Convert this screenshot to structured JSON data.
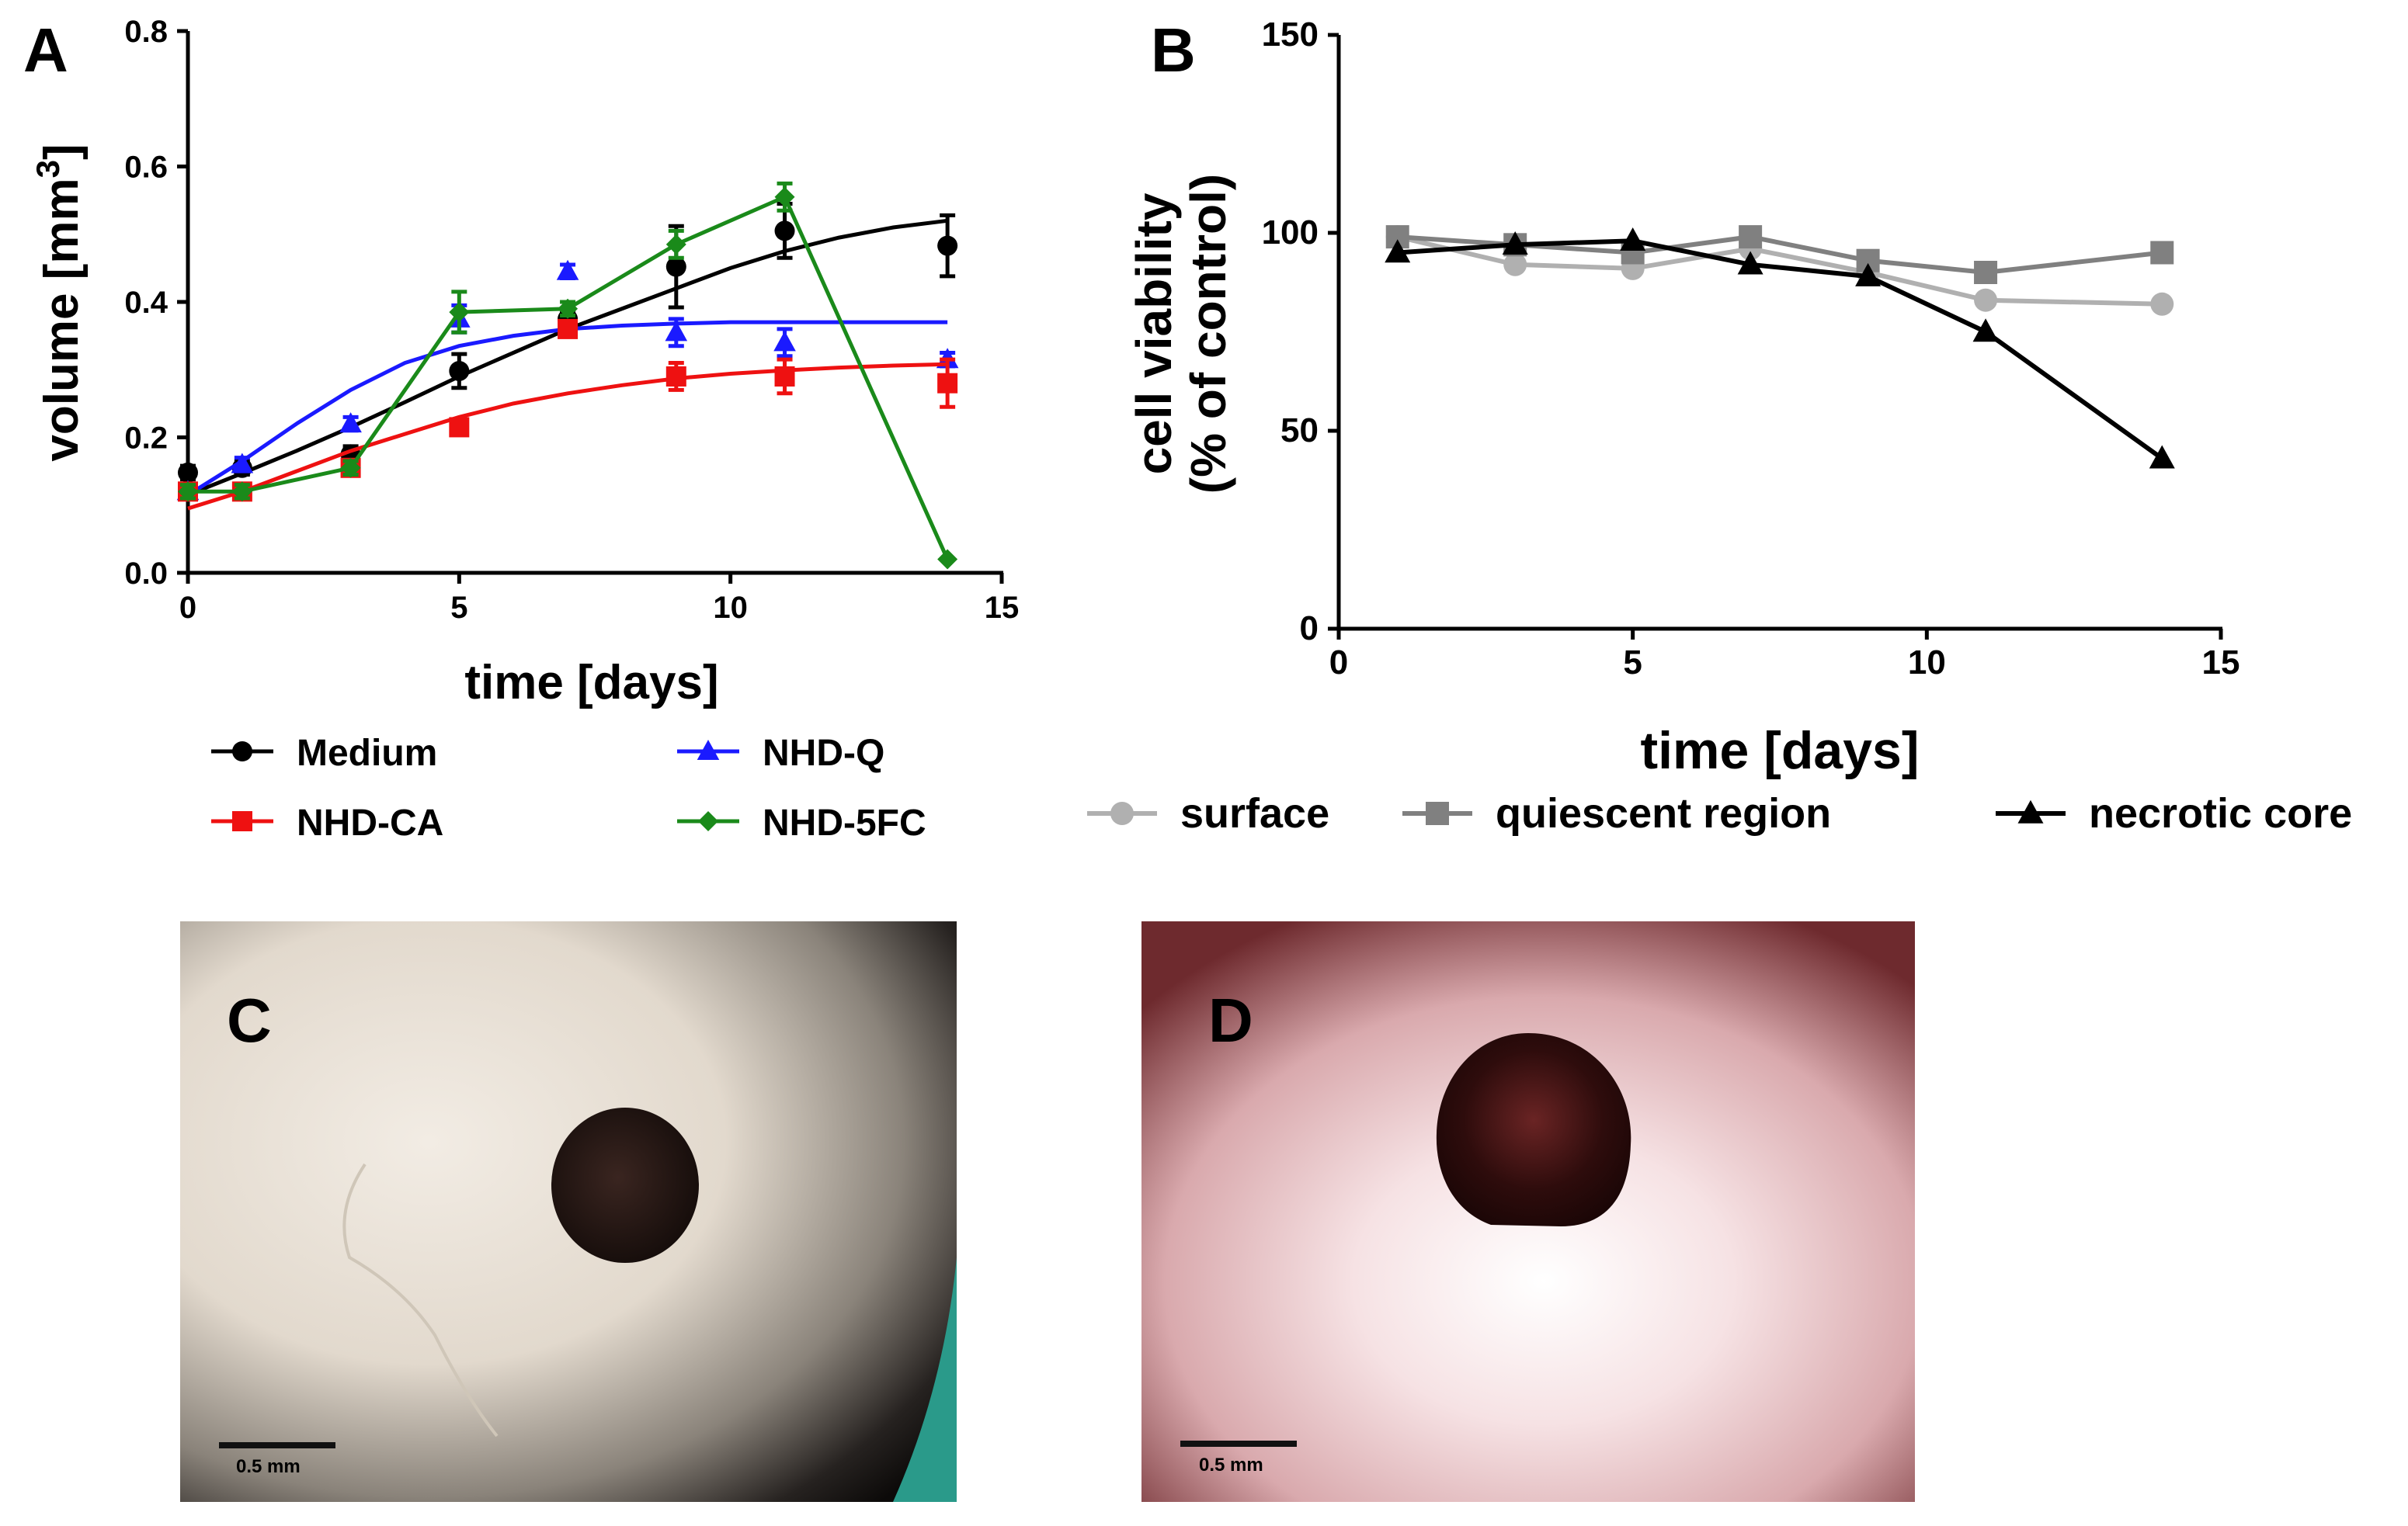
{
  "panel_labels": {
    "a": "A",
    "b": "B",
    "c": "C",
    "d": "D"
  },
  "chart_data": [
    {
      "type": "line",
      "panel": "A",
      "xlabel": "time [days]",
      "ylabel_main": "volume [mm",
      "ylabel_sup": "3",
      "ylabel_end": "]",
      "xlim": [
        0,
        15
      ],
      "ylim": [
        0.0,
        0.8
      ],
      "xticks": [
        "0",
        "5",
        "10",
        "15"
      ],
      "yticks": [
        "0.0",
        "0.2",
        "0.4",
        "0.6",
        "0.8"
      ],
      "legend_position": "bottom",
      "series": [
        {
          "name": "Medium",
          "color": "#000000",
          "marker": "circle",
          "x": [
            0,
            1,
            3,
            5,
            7,
            9,
            11,
            14
          ],
          "y": [
            0.148,
            0.155,
            0.175,
            0.298,
            0.375,
            0.452,
            0.505,
            0.483
          ],
          "err": [
            0.01,
            0.01,
            0.012,
            0.025,
            0.01,
            0.06,
            0.04,
            0.045
          ],
          "fit_x": [
            0,
            1,
            2,
            3,
            4,
            5,
            6,
            7,
            8,
            9,
            10,
            11,
            12,
            13,
            14
          ],
          "fit_y": [
            0.115,
            0.147,
            0.18,
            0.215,
            0.252,
            0.29,
            0.325,
            0.36,
            0.39,
            0.42,
            0.45,
            0.475,
            0.495,
            0.51,
            0.52
          ]
        },
        {
          "name": "NHD-Q",
          "color": "#1a1aff",
          "marker": "triangle",
          "x": [
            0,
            1,
            3,
            5,
            7,
            9,
            11,
            14
          ],
          "y": [
            0.12,
            0.16,
            0.22,
            0.375,
            0.445,
            0.355,
            0.34,
            0.315
          ],
          "err": [
            0.01,
            0.01,
            0.01,
            0.02,
            0.01,
            0.02,
            0.02,
            0.01
          ],
          "fit_x": [
            0,
            1,
            2,
            3,
            4,
            5,
            6,
            7,
            8,
            9,
            10,
            11,
            12,
            13,
            14
          ],
          "fit_y": [
            0.115,
            0.165,
            0.22,
            0.27,
            0.31,
            0.335,
            0.35,
            0.36,
            0.365,
            0.368,
            0.37,
            0.37,
            0.37,
            0.37,
            0.37
          ]
        },
        {
          "name": "NHD-CA",
          "color": "#ee1111",
          "marker": "square",
          "x": [
            0,
            1,
            3,
            5,
            7,
            9,
            11,
            14
          ],
          "y": [
            0.12,
            0.12,
            0.155,
            0.215,
            0.36,
            0.29,
            0.29,
            0.28
          ],
          "err": [
            0.01,
            0.01,
            0.01,
            0.01,
            0.01,
            0.02,
            0.025,
            0.035
          ],
          "fit_x": [
            0,
            1,
            2,
            3,
            4,
            5,
            6,
            7,
            8,
            9,
            10,
            11,
            12,
            13,
            14
          ],
          "fit_y": [
            0.095,
            0.12,
            0.15,
            0.18,
            0.205,
            0.23,
            0.25,
            0.265,
            0.277,
            0.287,
            0.294,
            0.299,
            0.303,
            0.306,
            0.308
          ]
        },
        {
          "name": "NHD-5FC",
          "color": "#1a8a1a",
          "marker": "diamond",
          "x": [
            0,
            1,
            3,
            5,
            7,
            9,
            11,
            14
          ],
          "y": [
            0.12,
            0.12,
            0.155,
            0.385,
            0.39,
            0.485,
            0.555,
            0.02
          ],
          "err": [
            0.01,
            0.01,
            0.01,
            0.03,
            0.01,
            0.02,
            0.02,
            0.0
          ]
        }
      ]
    },
    {
      "type": "line",
      "panel": "B",
      "xlabel": "time [days]",
      "ylabel_line1": "cell viability",
      "ylabel_line2": "(% of control)",
      "xlim": [
        0,
        15
      ],
      "ylim": [
        0,
        150
      ],
      "xticks": [
        "0",
        "5",
        "10",
        "15"
      ],
      "yticks": [
        "0",
        "50",
        "100",
        "150"
      ],
      "legend_position": "bottom",
      "series": [
        {
          "name": "surface",
          "color": "#b0b0b0",
          "marker": "circle",
          "x": [
            1,
            3,
            5,
            7,
            9,
            11,
            14
          ],
          "y": [
            99,
            92,
            91,
            96,
            90,
            83,
            82
          ]
        },
        {
          "name": "quiescent region",
          "color": "#808080",
          "marker": "square",
          "x": [
            1,
            3,
            5,
            7,
            9,
            11,
            14
          ],
          "y": [
            99,
            97,
            95,
            99,
            93,
            90,
            95
          ]
        },
        {
          "name": "necrotic core",
          "color": "#000000",
          "marker": "triangle",
          "x": [
            1,
            3,
            5,
            7,
            9,
            11,
            14
          ],
          "y": [
            95,
            97,
            98,
            92,
            89,
            75,
            43
          ]
        }
      ]
    }
  ],
  "photos": [
    {
      "panel": "C",
      "scale_label": "0.5 mm"
    },
    {
      "panel": "D",
      "scale_label": "0.5 mm"
    }
  ]
}
